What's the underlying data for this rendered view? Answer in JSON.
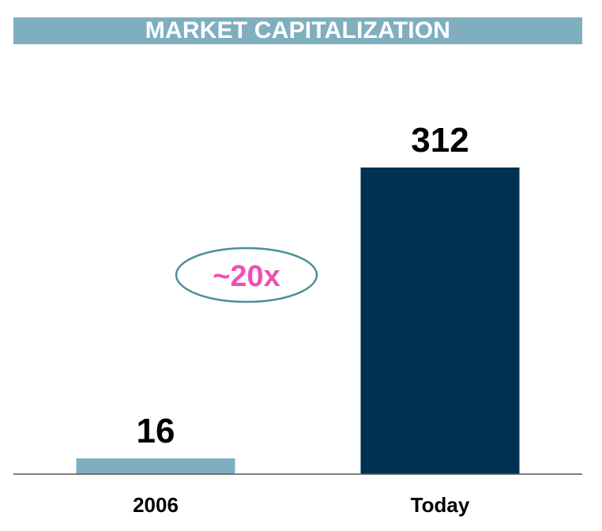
{
  "title": "MARKET CAPITALIZATION",
  "colors": {
    "title_bar": "#7fafbf",
    "axis": "#555555",
    "ellipse_stroke": "#4d8e98",
    "callout_text": "#f050b4"
  },
  "callout": {
    "text": "~20x"
  },
  "chart_data": {
    "type": "bar",
    "title": "MARKET CAPITALIZATION",
    "categories": [
      "2006",
      "Today"
    ],
    "values": [
      16,
      312
    ],
    "bar_colors": [
      "#7fafbf",
      "#003152"
    ],
    "data_labels": [
      "16",
      "312"
    ],
    "ylim": [
      0,
      312
    ],
    "grid": false,
    "legend": "none"
  }
}
